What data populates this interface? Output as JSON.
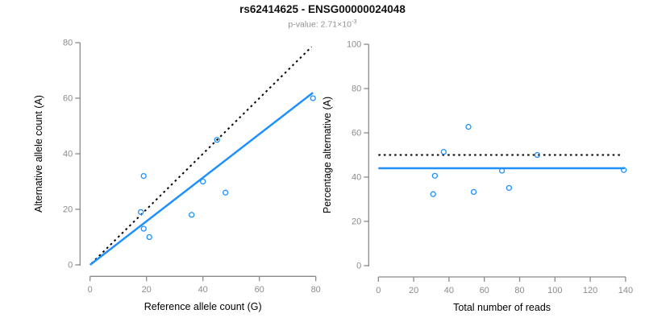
{
  "page": {
    "title": "rs62414625 - ENSG00000024048",
    "subtitle": {
      "prefix": "p-value: 2.71",
      "times": "×10",
      "exponent": "-3"
    }
  },
  "colors": {
    "accent_blue": "#1E90FF",
    "identity_black": "#000000",
    "axis_gray": "#8a8a8a",
    "tick_label_gray": "#8c8c8c",
    "axis_title_black": "#000000",
    "subtitle_gray": "#919191",
    "background": "#ffffff"
  },
  "chart_data": [
    {
      "type": "scatter",
      "name": "allele-counts",
      "xlabel": "Reference allele count (G)",
      "ylabel": "Alternative allele count (A)",
      "xlim": [
        0,
        80
      ],
      "ylim": [
        0,
        80
      ],
      "xticks": [
        0,
        20,
        40,
        60,
        80
      ],
      "yticks": [
        0,
        20,
        40,
        60,
        80
      ],
      "grid": false,
      "point_color": "#1E90FF",
      "points": [
        [
          19,
          32
        ],
        [
          18,
          19
        ],
        [
          19,
          13
        ],
        [
          21,
          10
        ],
        [
          36,
          18
        ],
        [
          40,
          30
        ],
        [
          45,
          45
        ],
        [
          48,
          26
        ],
        [
          79,
          60
        ]
      ],
      "lines": [
        {
          "name": "identity-line",
          "style": "dotted",
          "color": "#000000",
          "width": 2,
          "from": [
            0.5,
            0.5
          ],
          "to": [
            78.5,
            78.5
          ]
        },
        {
          "name": "fit-line",
          "style": "solid",
          "color": "#1E90FF",
          "width": 2.5,
          "from": [
            0,
            0
          ],
          "to": [
            79,
            62
          ]
        }
      ]
    },
    {
      "type": "scatter",
      "name": "percentage-vs-reads",
      "xlabel": "Total number of reads",
      "ylabel": "Percentage alternative (A)",
      "xlim": [
        0,
        140
      ],
      "ylim": [
        0,
        100
      ],
      "xticks": [
        0,
        20,
        40,
        60,
        80,
        100,
        120,
        140
      ],
      "yticks": [
        0,
        20,
        40,
        60,
        80,
        100
      ],
      "grid": false,
      "point_color": "#1E90FF",
      "points": [
        [
          51,
          62.7
        ],
        [
          37,
          51.4
        ],
        [
          32,
          40.6
        ],
        [
          31,
          32.3
        ],
        [
          54,
          33.3
        ],
        [
          70,
          42.9
        ],
        [
          90,
          50.0
        ],
        [
          74,
          35.1
        ],
        [
          139,
          43.2
        ]
      ],
      "lines": [
        {
          "name": "expected-50pct-line",
          "style": "dotted",
          "color": "#000000",
          "width": 2,
          "from": [
            0,
            50
          ],
          "to": [
            137,
            50
          ]
        },
        {
          "name": "mean-pct-line",
          "style": "solid",
          "color": "#1E90FF",
          "width": 2.5,
          "from": [
            0,
            44
          ],
          "to": [
            139.5,
            44
          ]
        }
      ]
    }
  ]
}
